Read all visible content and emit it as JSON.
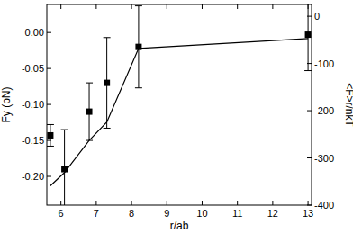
{
  "chart_data": {
    "type": "scatter",
    "x_label": "r/ab",
    "y_label": "Fy (pN)",
    "y2_label": "<F>r/nkT",
    "xlim": [
      5.6,
      13.1
    ],
    "xticks": [
      6,
      7,
      8,
      9,
      10,
      11,
      12,
      13
    ],
    "ylim": [
      -0.24,
      0.039
    ],
    "yticks": [
      {
        "value": -0.2,
        "label": "-0.20"
      },
      {
        "value": -0.15,
        "label": "-0.15"
      },
      {
        "value": -0.1,
        "label": "-0.10"
      },
      {
        "value": -0.05,
        "label": "-0.05"
      },
      {
        "value": 0,
        "label": "0.00"
      }
    ],
    "y2lim": [
      -400,
      25
    ],
    "y2ticks": [
      -400,
      -300,
      -200,
      -100,
      0
    ],
    "grid": false,
    "series": [
      {
        "type": "scatter",
        "color": "#000000",
        "marker": "square",
        "x": [
          5.7,
          6.1,
          6.8,
          7.3,
          8.2,
          13.0
        ],
        "values": [
          -0.143,
          -0.19,
          -0.11,
          -0.07,
          -0.02,
          -0.003
        ],
        "errors": [
          0.015,
          0.055,
          0.04,
          0.063,
          0.057,
          0.05
        ]
      },
      {
        "type": "line",
        "axis": "y2",
        "color": "#000000",
        "line_style": "solid",
        "x": [
          5.7,
          6.1,
          6.8,
          7.3,
          8.2,
          13.0
        ],
        "values": [
          -359,
          -331,
          -263,
          -224,
          -68,
          -47
        ]
      }
    ]
  }
}
